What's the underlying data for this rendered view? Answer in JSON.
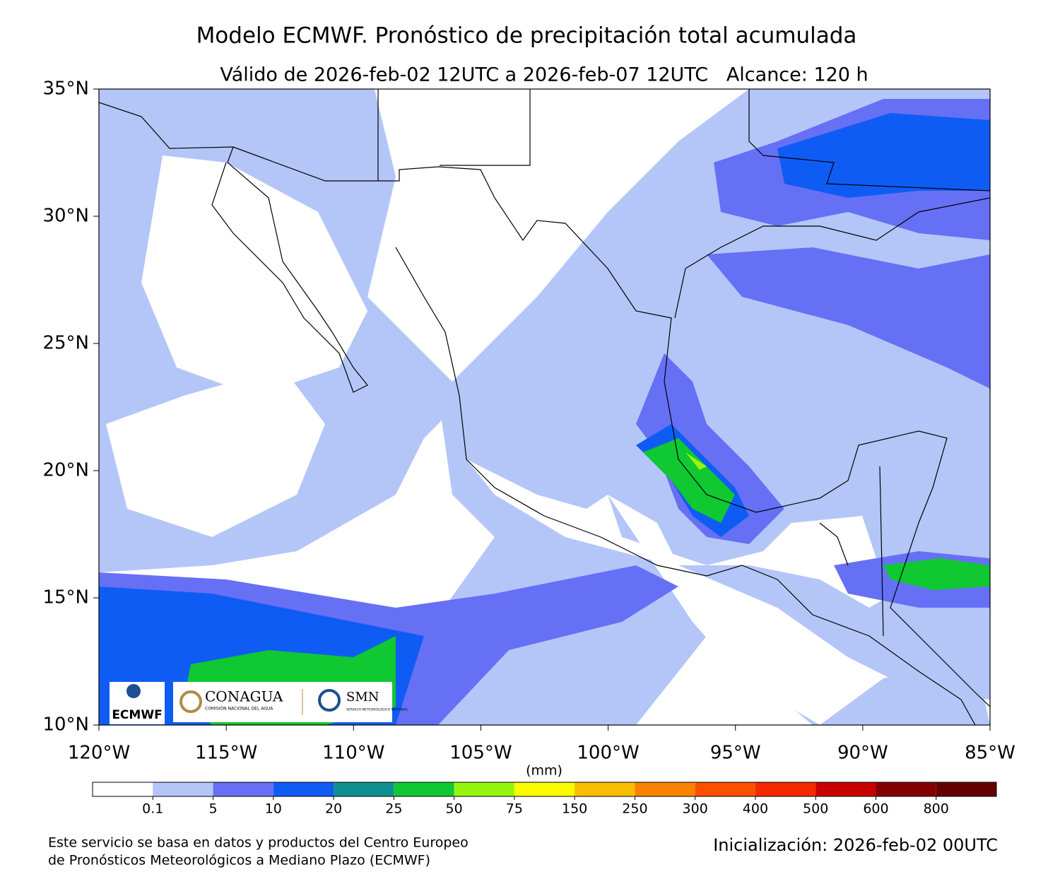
{
  "title": "Modelo ECMWF. Pronóstico de precipitación total acumulada",
  "subtitle": "Válido de 2026-feb-02 12UTC a 2026-feb-07 12UTC   Alcance: 120 h",
  "map": {
    "xlim": [
      -120,
      -85
    ],
    "ylim": [
      10,
      35
    ],
    "xticks": [
      {
        "value": -120,
        "label": "120°W"
      },
      {
        "value": -115,
        "label": "115°W"
      },
      {
        "value": -110,
        "label": "110°W"
      },
      {
        "value": -105,
        "label": "105°W"
      },
      {
        "value": -100,
        "label": "100°W"
      },
      {
        "value": -95,
        "label": "95°W"
      },
      {
        "value": -90,
        "label": "90°W"
      },
      {
        "value": -85,
        "label": "85°W"
      }
    ],
    "yticks": [
      {
        "value": 10,
        "label": "10°N"
      },
      {
        "value": 15,
        "label": "15°N"
      },
      {
        "value": 20,
        "label": "20°N"
      },
      {
        "value": 25,
        "label": "25°N"
      },
      {
        "value": 30,
        "label": "30°N"
      },
      {
        "value": 35,
        "label": "35°N"
      }
    ]
  },
  "colorbar": {
    "unit": "(mm)",
    "ticks": [
      0.1,
      5,
      10,
      20,
      25,
      50,
      75,
      150,
      250,
      300,
      400,
      500,
      600,
      800
    ],
    "colors": [
      "#ffffff",
      "#b4c6f8",
      "#6670f5",
      "#0f5cf5",
      "#0e9090",
      "#0fc832",
      "#96f50f",
      "#fafa00",
      "#fabe00",
      "#fa8200",
      "#fa5000",
      "#f52800",
      "#c80000",
      "#820000",
      "#640000"
    ]
  },
  "logos": {
    "ecmwf": "ECMWF",
    "conagua": "CONAGUA",
    "conagua_sub": "COMISIÓN NACIONAL DEL AGUA",
    "smn": "SMN",
    "smn_sub": "SERVICIO METEOROLÓGICO NACIONAL"
  },
  "footer": {
    "credit": [
      "Este servicio se basa en datos y productos del Centro Europeo",
      "de Pronósticos Meteorológicos a Mediano Plazo (ECMWF)"
    ],
    "init": "Inicialización: 2026-feb-02 00UTC"
  }
}
